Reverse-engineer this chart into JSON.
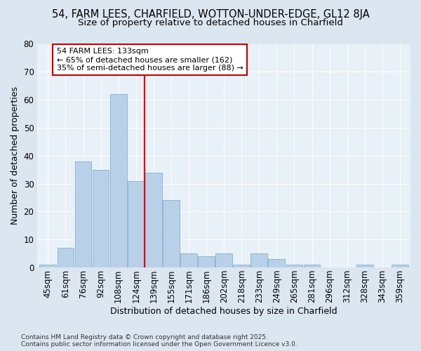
{
  "title_line1": "54, FARM LEES, CHARFIELD, WOTTON-UNDER-EDGE, GL12 8JA",
  "title_line2": "Size of property relative to detached houses in Charfield",
  "xlabel": "Distribution of detached houses by size in Charfield",
  "ylabel": "Number of detached properties",
  "categories": [
    "45sqm",
    "61sqm",
    "76sqm",
    "92sqm",
    "108sqm",
    "124sqm",
    "139sqm",
    "155sqm",
    "171sqm",
    "186sqm",
    "202sqm",
    "218sqm",
    "233sqm",
    "249sqm",
    "265sqm",
    "281sqm",
    "296sqm",
    "312sqm",
    "328sqm",
    "343sqm",
    "359sqm"
  ],
  "values": [
    1,
    7,
    38,
    35,
    62,
    31,
    34,
    24,
    5,
    4,
    5,
    1,
    5,
    3,
    1,
    1,
    0,
    0,
    1,
    0,
    1
  ],
  "bar_color": "#b8d0e8",
  "bar_edge_color": "#88b0d0",
  "red_line_x": 5.5,
  "annotation_line1": "54 FARM LEES: 133sqm",
  "annotation_line2": "← 65% of detached houses are smaller (162)",
  "annotation_line3": "35% of semi-detached houses are larger (88) →",
  "annotation_box_facecolor": "#ffffff",
  "annotation_box_edgecolor": "#cc0000",
  "ylim": [
    0,
    80
  ],
  "yticks": [
    0,
    10,
    20,
    30,
    40,
    50,
    60,
    70,
    80
  ],
  "bg_color": "#dce6f0",
  "plot_bg_color": "#e8f0f8",
  "footer": "Contains HM Land Registry data © Crown copyright and database right 2025.\nContains public sector information licensed under the Open Government Licence v3.0.",
  "title_fontsize": 10.5,
  "subtitle_fontsize": 9.5,
  "axis_label_fontsize": 9,
  "tick_fontsize": 8.5
}
